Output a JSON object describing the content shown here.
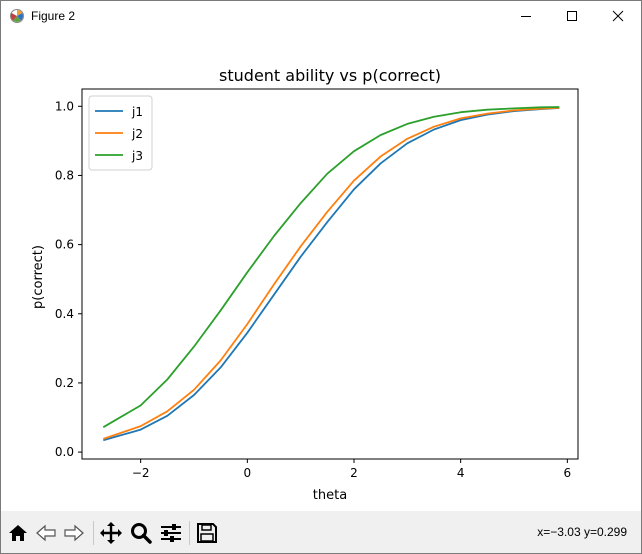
{
  "window": {
    "title": "Figure 2",
    "controls": [
      "minimize-icon",
      "maximize-icon",
      "close-icon"
    ]
  },
  "toolbar": {
    "buttons": [
      "home-icon",
      "back-arrow-icon",
      "forward-arrow-icon",
      "pan-icon",
      "zoom-icon",
      "configure-subplots-icon",
      "save-icon"
    ],
    "coords": "x=−3.03 y=0.299"
  },
  "chart_data": {
    "type": "line",
    "title": "student ability vs p(correct)",
    "xlabel": "theta",
    "ylabel": "p(correct)",
    "xlim": [
      -3.1,
      6.2
    ],
    "ylim": [
      -0.02,
      1.05
    ],
    "xticks": [
      -2,
      0,
      2,
      4,
      6
    ],
    "xtick_labels": [
      "−2",
      "0",
      "2",
      "4",
      "6"
    ],
    "yticks": [
      0.0,
      0.2,
      0.4,
      0.6,
      0.8,
      1.0
    ],
    "ytick_labels": [
      "0.0",
      "0.2",
      "0.4",
      "0.6",
      "0.8",
      "1.0"
    ],
    "grid": false,
    "legend_position": "upper left",
    "x": [
      -2.7,
      -2.0,
      -1.5,
      -1.0,
      -0.5,
      0.0,
      0.5,
      1.0,
      1.5,
      2.0,
      2.5,
      3.0,
      3.5,
      4.0,
      4.5,
      5.0,
      5.5,
      5.85
    ],
    "series": [
      {
        "name": "j1",
        "color": "#1f77b4",
        "values": [
          0.034,
          0.065,
          0.105,
          0.165,
          0.245,
          0.345,
          0.455,
          0.565,
          0.665,
          0.76,
          0.835,
          0.893,
          0.933,
          0.96,
          0.976,
          0.986,
          0.992,
          0.995
        ]
      },
      {
        "name": "j2",
        "color": "#ff7f0e",
        "values": [
          0.038,
          0.075,
          0.118,
          0.18,
          0.265,
          0.37,
          0.485,
          0.595,
          0.695,
          0.785,
          0.855,
          0.906,
          0.941,
          0.965,
          0.979,
          0.988,
          0.993,
          0.996
        ]
      },
      {
        "name": "j3",
        "color": "#2ca02c",
        "values": [
          0.072,
          0.135,
          0.21,
          0.305,
          0.41,
          0.52,
          0.625,
          0.72,
          0.805,
          0.87,
          0.917,
          0.949,
          0.97,
          0.983,
          0.99,
          0.994,
          0.997,
          0.998
        ]
      }
    ]
  }
}
